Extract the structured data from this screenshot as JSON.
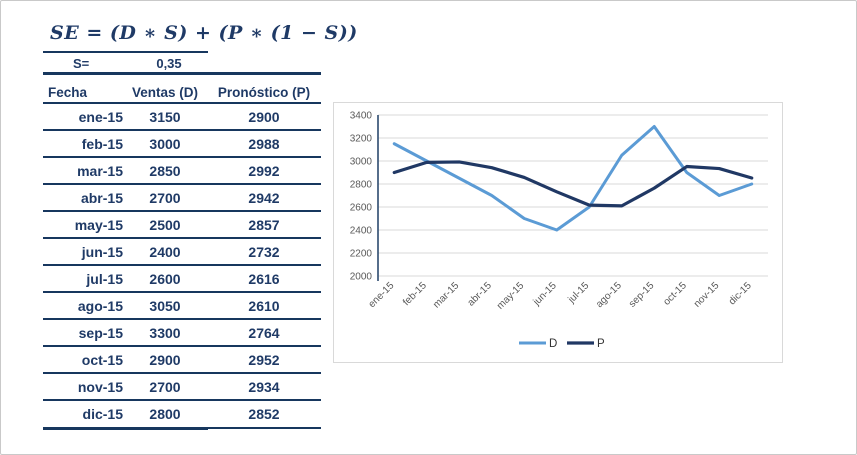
{
  "formula": {
    "text": "SE = (D ∗ S) + (P ∗ (1 − S))",
    "s_label": "S=",
    "s_value": "0,35"
  },
  "table": {
    "headers": [
      "Fecha",
      "Ventas (D)",
      "Pronóstico (P)"
    ],
    "rows": [
      {
        "fecha": "ene-15",
        "ventas": "3150",
        "pronostico": "2900"
      },
      {
        "fecha": "feb-15",
        "ventas": "3000",
        "pronostico": "2988"
      },
      {
        "fecha": "mar-15",
        "ventas": "2850",
        "pronostico": "2992"
      },
      {
        "fecha": "abr-15",
        "ventas": "2700",
        "pronostico": "2942"
      },
      {
        "fecha": "may-15",
        "ventas": "2500",
        "pronostico": "2857"
      },
      {
        "fecha": "jun-15",
        "ventas": "2400",
        "pronostico": "2732"
      },
      {
        "fecha": "jul-15",
        "ventas": "2600",
        "pronostico": "2616"
      },
      {
        "fecha": "ago-15",
        "ventas": "3050",
        "pronostico": "2610"
      },
      {
        "fecha": "sep-15",
        "ventas": "3300",
        "pronostico": "2764"
      },
      {
        "fecha": "oct-15",
        "ventas": "2900",
        "pronostico": "2952"
      },
      {
        "fecha": "nov-15",
        "ventas": "2700",
        "pronostico": "2934"
      },
      {
        "fecha": "dic-15",
        "ventas": "2800",
        "pronostico": "2852"
      }
    ]
  },
  "chart_data": {
    "type": "line",
    "title": "",
    "categories": [
      "ene-15",
      "feb-15",
      "mar-15",
      "abr-15",
      "may-15",
      "jun-15",
      "jul-15",
      "ago-15",
      "sep-15",
      "oct-15",
      "nov-15",
      "dic-15"
    ],
    "series": [
      {
        "name": "D",
        "color": "#5B9BD5",
        "stroke_width": 3,
        "values": [
          3150,
          3000,
          2850,
          2700,
          2500,
          2400,
          2600,
          3050,
          3300,
          2900,
          2700,
          2800
        ]
      },
      {
        "name": "P",
        "color": "#203864",
        "stroke_width": 3.2,
        "values": [
          2900,
          2988,
          2992,
          2942,
          2857,
          2732,
          2616,
          2610,
          2764,
          2952,
          2934,
          2852
        ]
      }
    ],
    "ylim": [
      2000,
      3400
    ],
    "yticks": [
      3400,
      3200,
      3000,
      2800,
      2600,
      2400,
      2200,
      2000
    ],
    "xlabel": "",
    "ylabel": "",
    "grid": true,
    "legend_position": "bottom",
    "gridline_color": "#D9D9D9",
    "axis_line_color": "#2C4A6E",
    "axis_label_color": "#595959",
    "legend_text_color": "#333333",
    "chart_border_color": "#D9D9D9"
  },
  "colors": {
    "table_text": "#1F3A66",
    "table_rule": "#17375E",
    "page_border": "#C9C9C9",
    "background": "#FFFFFF"
  }
}
